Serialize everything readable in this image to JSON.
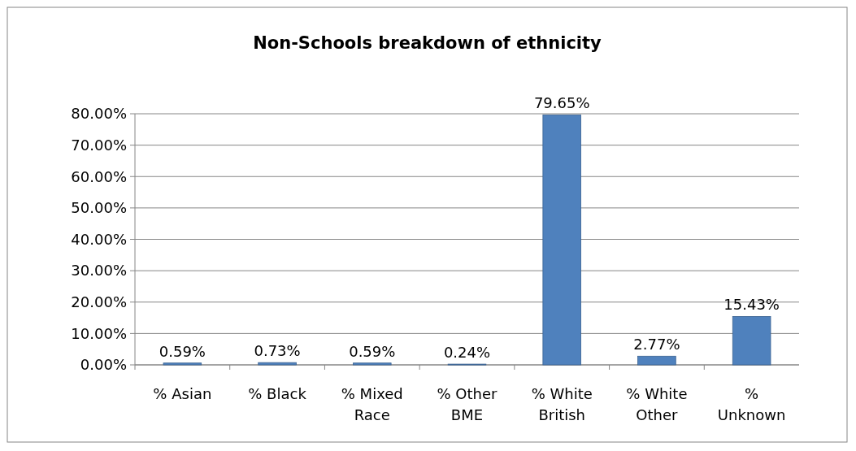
{
  "chart_data": {
    "type": "bar",
    "title": "Non-Schools breakdown of ethnicity",
    "categories": [
      "% Asian",
      "% Black",
      "% Mixed Race",
      "% Other BME",
      "% White British",
      "% White Other",
      "% Unknown"
    ],
    "values": [
      0.59,
      0.73,
      0.59,
      0.24,
      79.65,
      2.77,
      15.43
    ],
    "value_labels": [
      "0.59%",
      "0.73%",
      "0.59%",
      "0.24%",
      "79.65%",
      "2.77%",
      "15.43%"
    ],
    "color": "#4f81bd",
    "ylim": [
      0,
      80
    ],
    "yticks": [
      {
        "value": 0,
        "label": "0.00%"
      },
      {
        "value": 10,
        "label": "10.00%"
      },
      {
        "value": 20,
        "label": "20.00%"
      },
      {
        "value": 30,
        "label": "30.00%"
      },
      {
        "value": 40,
        "label": "40.00%"
      },
      {
        "value": 50,
        "label": "50.00%"
      },
      {
        "value": 60,
        "label": "60.00%"
      },
      {
        "value": 70,
        "label": "70.00%"
      },
      {
        "value": 80,
        "label": "80.00%"
      }
    ],
    "grid": "y"
  }
}
